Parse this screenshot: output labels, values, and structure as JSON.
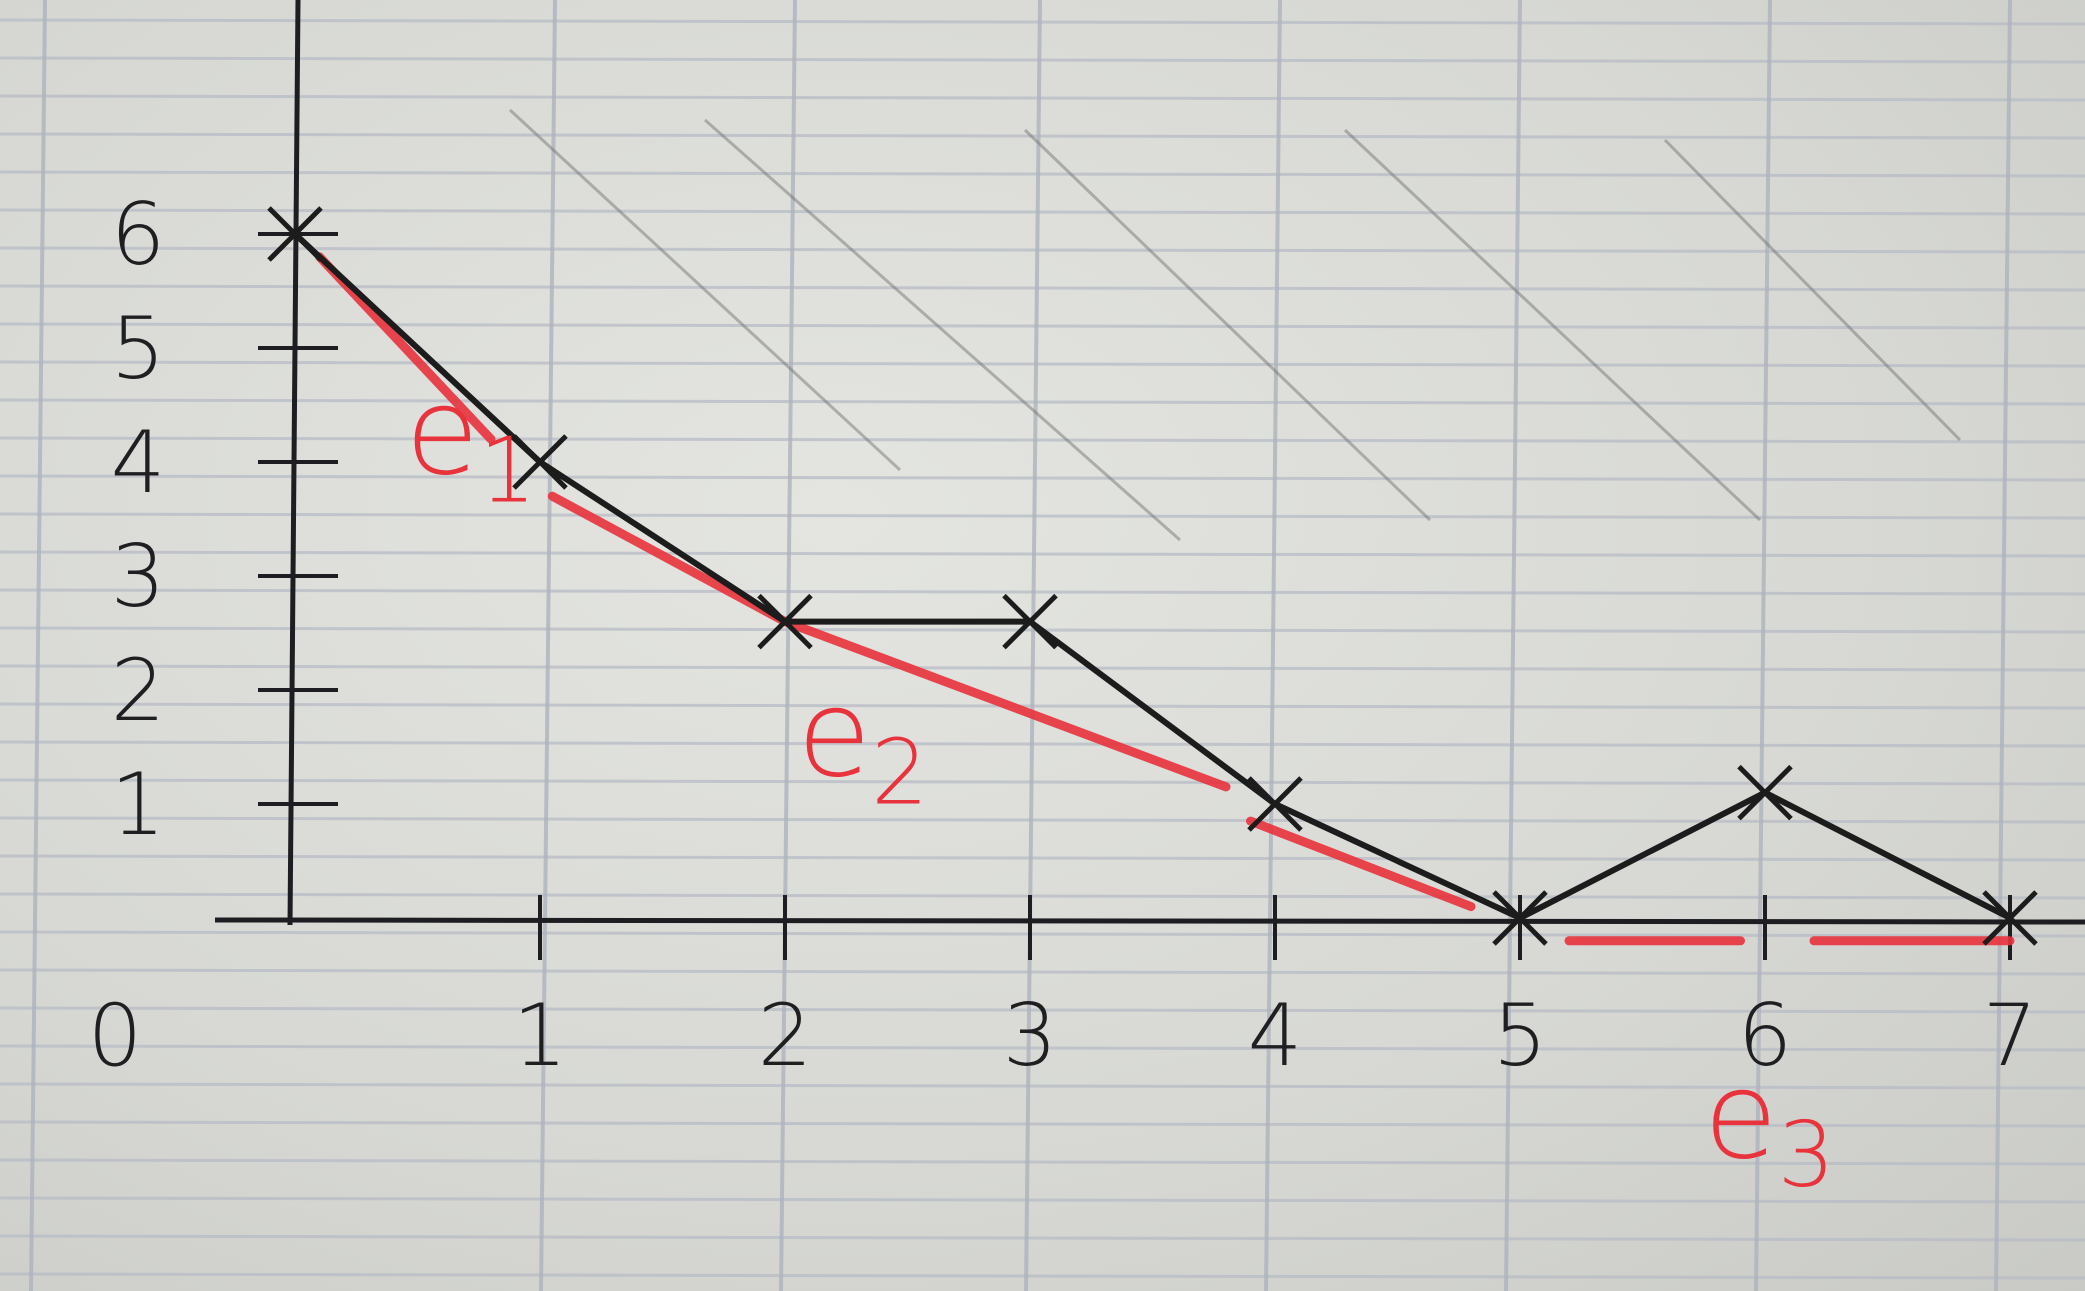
{
  "chart_data": {
    "type": "line",
    "x": [
      0,
      1,
      2,
      3,
      4,
      5,
      6,
      7
    ],
    "x_ticks": [
      "0",
      "1",
      "2",
      "3",
      "4",
      "5",
      "6",
      "7"
    ],
    "y_ticks": [
      "1",
      "2",
      "3",
      "4",
      "5",
      "6"
    ],
    "xlim": [
      0,
      7.4
    ],
    "ylim": [
      0,
      6.3
    ],
    "grid": true,
    "series": [
      {
        "color": "#1c1c1c",
        "values": [
          6,
          4,
          2.6,
          2.6,
          1,
          0,
          1.1,
          0
        ]
      }
    ],
    "envelope_segments": [
      {
        "label": "e1",
        "color": "#e8323c",
        "points": [
          [
            0.1,
            5.8
          ],
          [
            0.8,
            4.2
          ]
        ]
      },
      {
        "label": "e2",
        "color": "#e8323c",
        "points": [
          [
            1.05,
            3.7
          ],
          [
            2.0,
            2.6
          ],
          [
            3.8,
            1.15
          ]
        ]
      },
      {
        "label": "e2",
        "color": "#e8323c",
        "points": [
          [
            3.9,
            0.85
          ],
          [
            4.8,
            0.1
          ]
        ]
      },
      {
        "label": "e3",
        "color": "#e8323c",
        "points": [
          [
            5.2,
            -0.2
          ],
          [
            5.9,
            -0.2
          ]
        ]
      },
      {
        "label": "e3",
        "color": "#e8323c",
        "points": [
          [
            6.2,
            -0.2
          ],
          [
            7.0,
            -0.2
          ]
        ]
      }
    ],
    "annotations": [
      {
        "text": "e",
        "sub": "1",
        "color": "#e8323c",
        "x": 0.45,
        "y": 3.9
      },
      {
        "text": "e",
        "sub": "2",
        "color": "#e8323c",
        "x": 2.05,
        "y": 1.25
      },
      {
        "text": "e",
        "sub": "3",
        "color": "#e8323c",
        "x": 5.75,
        "y": -2.1
      }
    ]
  }
}
